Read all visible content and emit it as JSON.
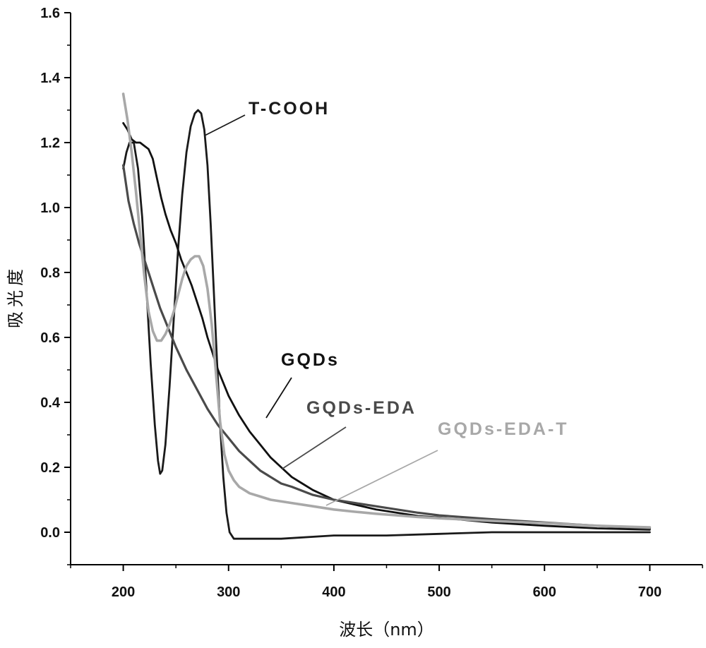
{
  "chart_data": {
    "type": "line",
    "title": "",
    "xlabel": "波长（nm）",
    "ylabel": "吸光度",
    "xlim": [
      150,
      750
    ],
    "ylim": [
      -0.1,
      1.6
    ],
    "xticks": [
      200,
      300,
      400,
      500,
      600,
      700
    ],
    "xtick_labels": [
      "200",
      "300",
      "400",
      "500",
      "600",
      "700"
    ],
    "yticks": [
      0.0,
      0.2,
      0.4,
      0.6,
      0.8,
      1.0,
      1.2,
      1.4,
      1.6
    ],
    "ytick_labels": [
      "0.0",
      "0.2",
      "0.4",
      "0.6",
      "0.8",
      "1.0",
      "1.2",
      "1.4",
      "1.6"
    ],
    "grid": false,
    "legend": "none",
    "series": [
      {
        "name": "T-COOH",
        "color": "#1a1a1a",
        "points": [
          [
            200,
            1.12
          ],
          [
            203,
            1.17
          ],
          [
            206,
            1.2
          ],
          [
            210,
            1.2
          ],
          [
            214,
            1.12
          ],
          [
            218,
            0.97
          ],
          [
            222,
            0.75
          ],
          [
            226,
            0.52
          ],
          [
            230,
            0.33
          ],
          [
            233,
            0.22
          ],
          [
            235,
            0.18
          ],
          [
            237,
            0.19
          ],
          [
            240,
            0.27
          ],
          [
            244,
            0.45
          ],
          [
            248,
            0.66
          ],
          [
            252,
            0.87
          ],
          [
            256,
            1.04
          ],
          [
            260,
            1.17
          ],
          [
            264,
            1.25
          ],
          [
            268,
            1.29
          ],
          [
            271,
            1.3
          ],
          [
            274,
            1.29
          ],
          [
            277,
            1.24
          ],
          [
            280,
            1.13
          ],
          [
            283,
            0.95
          ],
          [
            286,
            0.74
          ],
          [
            289,
            0.53
          ],
          [
            292,
            0.33
          ],
          [
            295,
            0.17
          ],
          [
            298,
            0.06
          ],
          [
            301,
            0.0
          ],
          [
            305,
            -0.02
          ],
          [
            310,
            -0.02
          ],
          [
            330,
            -0.02
          ],
          [
            350,
            -0.02
          ],
          [
            400,
            -0.01
          ],
          [
            450,
            -0.01
          ],
          [
            500,
            -0.005
          ],
          [
            550,
            0.0
          ],
          [
            600,
            0.0
          ],
          [
            650,
            0.0
          ],
          [
            700,
            0.0
          ]
        ]
      },
      {
        "name": "GQDs",
        "color": "#111111",
        "points": [
          [
            200,
            1.26
          ],
          [
            204,
            1.24
          ],
          [
            208,
            1.21
          ],
          [
            212,
            1.2
          ],
          [
            216,
            1.2
          ],
          [
            220,
            1.19
          ],
          [
            224,
            1.18
          ],
          [
            228,
            1.15
          ],
          [
            232,
            1.09
          ],
          [
            236,
            1.03
          ],
          [
            240,
            0.98
          ],
          [
            245,
            0.93
          ],
          [
            250,
            0.89
          ],
          [
            255,
            0.84
          ],
          [
            260,
            0.8
          ],
          [
            265,
            0.76
          ],
          [
            270,
            0.71
          ],
          [
            275,
            0.66
          ],
          [
            280,
            0.6
          ],
          [
            285,
            0.55
          ],
          [
            290,
            0.5
          ],
          [
            300,
            0.42
          ],
          [
            310,
            0.36
          ],
          [
            320,
            0.31
          ],
          [
            330,
            0.27
          ],
          [
            340,
            0.23
          ],
          [
            350,
            0.2
          ],
          [
            360,
            0.17
          ],
          [
            370,
            0.15
          ],
          [
            380,
            0.13
          ],
          [
            400,
            0.1
          ],
          [
            420,
            0.085
          ],
          [
            440,
            0.07
          ],
          [
            460,
            0.06
          ],
          [
            480,
            0.05
          ],
          [
            500,
            0.045
          ],
          [
            550,
            0.03
          ],
          [
            600,
            0.02
          ],
          [
            650,
            0.012
          ],
          [
            700,
            0.008
          ]
        ]
      },
      {
        "name": "GQDs-EDA",
        "color": "#4a4a4a",
        "points": [
          [
            200,
            1.13
          ],
          [
            205,
            1.02
          ],
          [
            210,
            0.95
          ],
          [
            215,
            0.89
          ],
          [
            220,
            0.84
          ],
          [
            225,
            0.79
          ],
          [
            230,
            0.74
          ],
          [
            235,
            0.69
          ],
          [
            240,
            0.65
          ],
          [
            250,
            0.57
          ],
          [
            260,
            0.5
          ],
          [
            270,
            0.44
          ],
          [
            280,
            0.38
          ],
          [
            290,
            0.33
          ],
          [
            300,
            0.29
          ],
          [
            310,
            0.25
          ],
          [
            320,
            0.22
          ],
          [
            330,
            0.19
          ],
          [
            340,
            0.17
          ],
          [
            350,
            0.15
          ],
          [
            360,
            0.14
          ],
          [
            380,
            0.115
          ],
          [
            400,
            0.1
          ],
          [
            420,
            0.09
          ],
          [
            440,
            0.08
          ],
          [
            460,
            0.07
          ],
          [
            480,
            0.06
          ],
          [
            500,
            0.052
          ],
          [
            550,
            0.04
          ],
          [
            600,
            0.03
          ],
          [
            650,
            0.02
          ],
          [
            700,
            0.012
          ]
        ]
      },
      {
        "name": "GQDs-EDA-T",
        "color": "#a8a8a8",
        "points": [
          [
            200,
            1.35
          ],
          [
            204,
            1.27
          ],
          [
            208,
            1.17
          ],
          [
            212,
            1.05
          ],
          [
            216,
            0.92
          ],
          [
            220,
            0.79
          ],
          [
            224,
            0.68
          ],
          [
            228,
            0.62
          ],
          [
            232,
            0.59
          ],
          [
            236,
            0.59
          ],
          [
            240,
            0.61
          ],
          [
            244,
            0.64
          ],
          [
            248,
            0.68
          ],
          [
            252,
            0.73
          ],
          [
            256,
            0.78
          ],
          [
            260,
            0.82
          ],
          [
            264,
            0.84
          ],
          [
            268,
            0.85
          ],
          [
            272,
            0.85
          ],
          [
            276,
            0.82
          ],
          [
            280,
            0.75
          ],
          [
            284,
            0.64
          ],
          [
            288,
            0.49
          ],
          [
            292,
            0.34
          ],
          [
            296,
            0.24
          ],
          [
            300,
            0.19
          ],
          [
            305,
            0.16
          ],
          [
            310,
            0.14
          ],
          [
            320,
            0.12
          ],
          [
            330,
            0.11
          ],
          [
            340,
            0.1
          ],
          [
            360,
            0.09
          ],
          [
            380,
            0.08
          ],
          [
            400,
            0.07
          ],
          [
            420,
            0.063
          ],
          [
            440,
            0.057
          ],
          [
            460,
            0.052
          ],
          [
            480,
            0.047
          ],
          [
            500,
            0.043
          ],
          [
            550,
            0.035
          ],
          [
            600,
            0.028
          ],
          [
            650,
            0.02
          ],
          [
            700,
            0.015
          ]
        ]
      }
    ],
    "annotations": [
      {
        "text": "T-COOH",
        "color": "#1a1a1a"
      },
      {
        "text": "GQDs",
        "color": "#111111"
      },
      {
        "text": "GQDs-EDA",
        "color": "#4a4a4a"
      },
      {
        "text": "GQDs-EDA-T",
        "color": "#a8a8a8"
      }
    ]
  }
}
